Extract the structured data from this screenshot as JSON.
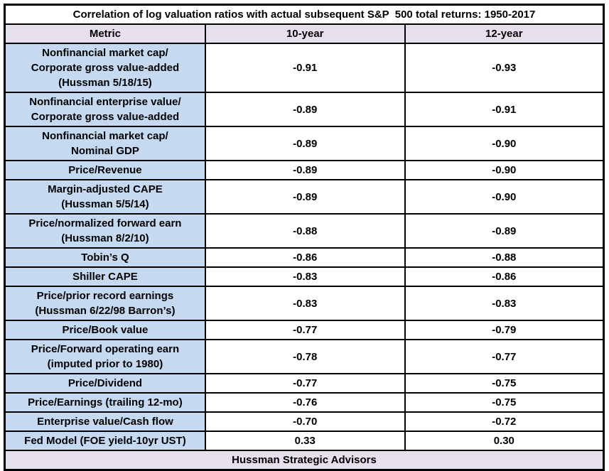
{
  "colors": {
    "header_bg": "#e6e0ec",
    "footer_bg": "#e6e0ec",
    "metric_bg": "#c5d9f1",
    "value_bg": "#ffffff",
    "border": "#000000",
    "text": "#000000"
  },
  "chart_data": {
    "type": "table",
    "title": "Correlation of log valuation ratios with actual subsequent S&P  500 total returns: 1950-2017",
    "columns": [
      "Metric",
      "10-year",
      "12-year"
    ],
    "rows": [
      {
        "metric": [
          "Nonfinancial market cap/",
          "Corporate gross value-added",
          "(Hussman 5/18/15)"
        ],
        "ten_year": "-0.91",
        "twelve_year": "-0.93"
      },
      {
        "metric": [
          "Nonfinancial enterprise value/",
          "Corporate gross value-added"
        ],
        "ten_year": "-0.89",
        "twelve_year": "-0.91"
      },
      {
        "metric": [
          "Nonfinancial market cap/",
          "Nominal GDP"
        ],
        "ten_year": "-0.89",
        "twelve_year": "-0.90"
      },
      {
        "metric": [
          "Price/Revenue"
        ],
        "ten_year": "-0.89",
        "twelve_year": "-0.90"
      },
      {
        "metric": [
          "Margin-adjusted CAPE",
          "(Hussman 5/5/14)"
        ],
        "ten_year": "-0.89",
        "twelve_year": "-0.90"
      },
      {
        "metric": [
          "Price/normalized forward earn",
          "(Hussman 8/2/10)"
        ],
        "ten_year": "-0.88",
        "twelve_year": "-0.89"
      },
      {
        "metric": [
          "Tobin’s Q"
        ],
        "ten_year": "-0.86",
        "twelve_year": "-0.88"
      },
      {
        "metric": [
          "Shiller CAPE"
        ],
        "ten_year": "-0.83",
        "twelve_year": "-0.86"
      },
      {
        "metric": [
          "Price/prior record earnings",
          "(Hussman 6/22/98 Barron’s)"
        ],
        "ten_year": "-0.83",
        "twelve_year": "-0.83"
      },
      {
        "metric": [
          "Price/Book value"
        ],
        "ten_year": "-0.77",
        "twelve_year": "-0.79"
      },
      {
        "metric": [
          "Price/Forward operating earn",
          "(imputed prior to 1980)"
        ],
        "ten_year": "-0.78",
        "twelve_year": "-0.77"
      },
      {
        "metric": [
          "Price/Dividend"
        ],
        "ten_year": "-0.77",
        "twelve_year": "-0.75"
      },
      {
        "metric": [
          "Price/Earnings (trailing 12-mo)"
        ],
        "ten_year": "-0.76",
        "twelve_year": "-0.75"
      },
      {
        "metric": [
          "Enterprise value/Cash flow"
        ],
        "ten_year": "-0.70",
        "twelve_year": "-0.72"
      },
      {
        "metric": [
          "Fed Model (FOE yield-10yr UST)"
        ],
        "ten_year": "0.33",
        "twelve_year": "0.30"
      }
    ],
    "footer": "Hussman Strategic Advisors"
  }
}
